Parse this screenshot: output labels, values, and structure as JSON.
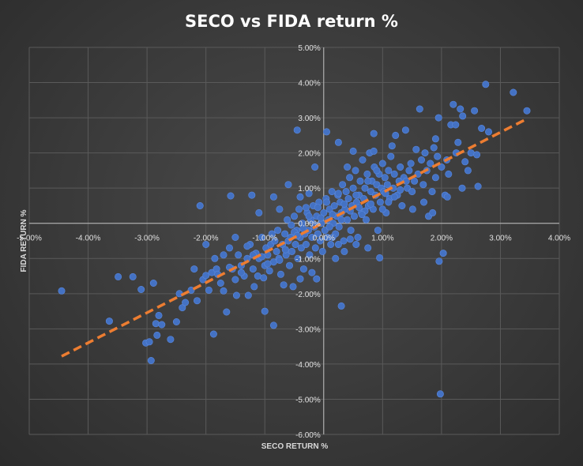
{
  "chart_data": {
    "type": "scatter",
    "title": "SECO vs FIDA return %",
    "xlabel": "SECO RETURN %",
    "ylabel": "FIDA RETURN %",
    "xlim": [
      -0.05,
      0.04
    ],
    "ylim": [
      -0.06,
      0.05
    ],
    "x_ticks": [
      -0.05,
      -0.04,
      -0.03,
      -0.02,
      -0.01,
      0.0,
      0.01,
      0.02,
      0.03,
      0.04
    ],
    "y_ticks": [
      -0.06,
      -0.05,
      -0.04,
      -0.03,
      -0.02,
      -0.01,
      0.0,
      0.01,
      0.02,
      0.03,
      0.04,
      0.05
    ],
    "x_tick_labels": [
      "-5.00%",
      "-4.00%",
      "-3.00%",
      "-2.00%",
      "-1.00%",
      "0.00%",
      "1.00%",
      "2.00%",
      "3.00%",
      "4.00%"
    ],
    "y_tick_labels": [
      "-6.00%",
      "-5.00%",
      "-4.00%",
      "-3.00%",
      "-2.00%",
      "-1.00%",
      "0.00%",
      "1.00%",
      "2.00%",
      "3.00%",
      "4.00%",
      "5.00%"
    ],
    "gridlines": true,
    "legend": "none",
    "colors": {
      "points": "#4472c4",
      "trendline": "#ed7d31",
      "grid": "#5a5a5a",
      "background": "#3b3b3b"
    },
    "trendline": {
      "type": "linear",
      "style": "dashed",
      "from": [
        -0.0445,
        -0.0378
      ],
      "to": [
        0.0345,
        0.0297
      ]
    },
    "series": [
      {
        "points": [
          [
            -0.0445,
            -0.0192
          ],
          [
            -0.0364,
            -0.0278
          ],
          [
            -0.0349,
            -0.0152
          ],
          [
            -0.0324,
            -0.0152
          ],
          [
            -0.031,
            -0.0188
          ],
          [
            -0.0302,
            -0.034
          ],
          [
            -0.0296,
            -0.0337
          ],
          [
            -0.0293,
            -0.039
          ],
          [
            -0.0289,
            -0.017
          ],
          [
            -0.0285,
            -0.0285
          ],
          [
            -0.0283,
            -0.0318
          ],
          [
            -0.028,
            -0.0262
          ],
          [
            -0.0275,
            -0.0288
          ],
          [
            -0.026,
            -0.033
          ],
          [
            -0.025,
            -0.028
          ],
          [
            -0.0245,
            -0.02
          ],
          [
            -0.024,
            -0.024
          ],
          [
            -0.0235,
            -0.0225
          ],
          [
            -0.0225,
            -0.019
          ],
          [
            -0.022,
            -0.013
          ],
          [
            -0.0215,
            -0.022
          ],
          [
            -0.021,
            0.005
          ],
          [
            -0.0205,
            -0.016
          ],
          [
            -0.02,
            -0.0148
          ],
          [
            -0.0195,
            -0.019
          ],
          [
            -0.019,
            -0.014
          ],
          [
            -0.0187,
            -0.0315
          ],
          [
            -0.0182,
            -0.013
          ],
          [
            -0.0175,
            -0.017
          ],
          [
            -0.017,
            -0.0192
          ],
          [
            -0.0165,
            -0.0252
          ],
          [
            -0.016,
            -0.007
          ],
          [
            -0.0155,
            -0.013
          ],
          [
            -0.015,
            -0.016
          ],
          [
            -0.0148,
            -0.0205
          ],
          [
            -0.0145,
            -0.009
          ],
          [
            -0.014,
            -0.012
          ],
          [
            -0.0135,
            -0.015
          ],
          [
            -0.013,
            -0.01
          ],
          [
            -0.0128,
            -0.0205
          ],
          [
            -0.0125,
            -0.006
          ],
          [
            -0.012,
            -0.013
          ],
          [
            -0.0118,
            -0.018
          ],
          [
            -0.0115,
            -0.0085
          ],
          [
            -0.0112,
            -0.015
          ],
          [
            -0.011,
            -0.01
          ],
          [
            -0.0105,
            -0.004
          ],
          [
            -0.0102,
            -0.0155
          ],
          [
            -0.01,
            -0.012
          ],
          [
            -0.0098,
            -0.007
          ],
          [
            -0.0095,
            -0.009
          ],
          [
            -0.0092,
            -0.0135
          ],
          [
            -0.009,
            -0.006
          ],
          [
            -0.0088,
            -0.003
          ],
          [
            -0.0085,
            -0.011
          ],
          [
            -0.0083,
            -0.005
          ],
          [
            -0.008,
            -0.008
          ],
          [
            -0.0078,
            -0.002
          ],
          [
            -0.0076,
            -0.01
          ],
          [
            -0.0073,
            -0.0145
          ],
          [
            -0.007,
            -0.006
          ],
          [
            -0.0068,
            -0.0175
          ],
          [
            -0.0066,
            -0.003
          ],
          [
            -0.0064,
            -0.009
          ],
          [
            -0.0062,
            0.001
          ],
          [
            -0.006,
            -0.005
          ],
          [
            -0.0058,
            -0.012
          ],
          [
            -0.0056,
            -0.004
          ],
          [
            -0.0054,
            -0.008
          ],
          [
            -0.0052,
            -0.018
          ],
          [
            -0.005,
            0.002
          ],
          [
            -0.0048,
            -0.006
          ],
          [
            -0.0046,
            -0.002
          ],
          [
            -0.0044,
            -0.01
          ],
          [
            -0.0042,
            0.004
          ],
          [
            -0.004,
            -0.004
          ],
          [
            -0.0038,
            -0.007
          ],
          [
            -0.0036,
            0.0
          ],
          [
            -0.0034,
            -0.013
          ],
          [
            -0.0032,
            -0.003
          ],
          [
            -0.003,
            -0.006
          ],
          [
            -0.0028,
            0.003
          ],
          [
            -0.0026,
            -0.002
          ],
          [
            -0.0024,
            -0.009
          ],
          [
            -0.0022,
            0.001
          ],
          [
            -0.002,
            -0.004
          ],
          [
            -0.0018,
            0.005
          ],
          [
            -0.0016,
            -0.001
          ],
          [
            -0.0014,
            -0.007
          ],
          [
            -0.0012,
            0.002
          ],
          [
            -0.001,
            -0.003
          ],
          [
            -0.0008,
            0.006
          ],
          [
            -0.0006,
            -0.005
          ],
          [
            -0.0004,
            0.0
          ],
          [
            -0.0002,
            -0.008
          ],
          [
            0.0,
            0.003
          ],
          [
            0.0002,
            -0.002
          ],
          [
            0.0004,
            0.007
          ],
          [
            0.0006,
            -0.004
          ],
          [
            0.0008,
            0.001
          ],
          [
            0.001,
            0.004
          ],
          [
            0.0012,
            -0.006
          ],
          [
            0.0014,
            0.009
          ],
          [
            0.0016,
            0.0
          ],
          [
            0.0018,
            0.005
          ],
          [
            0.002,
            -0.003
          ],
          [
            0.0022,
            0.002
          ],
          [
            0.0024,
            0.008
          ],
          [
            0.0026,
            -0.001
          ],
          [
            0.0028,
            0.006
          ],
          [
            0.003,
            0.003
          ],
          [
            0.0032,
            0.011
          ],
          [
            0.0034,
            -0.005
          ],
          [
            0.0036,
            0.004
          ],
          [
            0.0038,
            0.009
          ],
          [
            0.004,
            0.001
          ],
          [
            0.0042,
            0.007
          ],
          [
            0.0044,
            0.013
          ],
          [
            0.0046,
            -0.002
          ],
          [
            0.0048,
            0.005
          ],
          [
            0.005,
            0.01
          ],
          [
            0.0052,
            0.002
          ],
          [
            0.0054,
            0.015
          ],
          [
            0.0056,
            0.006
          ],
          [
            0.0058,
            -0.004
          ],
          [
            0.006,
            0.008
          ],
          [
            0.0062,
            0.012
          ],
          [
            0.0064,
            0.003
          ],
          [
            0.0066,
            0.018
          ],
          [
            0.0068,
            0.007
          ],
          [
            0.007,
            0.01
          ],
          [
            0.0072,
            0.001
          ],
          [
            0.0074,
            0.014
          ],
          [
            0.0076,
            0.005
          ],
          [
            0.0078,
            0.02
          ],
          [
            0.008,
            0.009
          ],
          [
            0.0082,
            0.012
          ],
          [
            0.0084,
            0.004
          ],
          [
            0.0086,
            0.016
          ],
          [
            0.0088,
            0.008
          ],
          [
            0.009,
            0.011
          ],
          [
            0.0092,
            -0.002
          ],
          [
            0.0094,
            0.014
          ],
          [
            0.0096,
            0.006
          ],
          [
            0.0098,
            0.01
          ],
          [
            0.01,
            0.017
          ],
          [
            0.0102,
            0.009
          ],
          [
            0.0104,
            0.013
          ],
          [
            0.0106,
            0.003
          ],
          [
            0.0108,
            0.011
          ],
          [
            0.011,
            0.015
          ],
          [
            0.0112,
            0.007
          ],
          [
            0.0114,
            0.019
          ],
          [
            0.0116,
            0.022
          ],
          [
            0.0118,
            0.01
          ],
          [
            0.012,
            0.014
          ],
          [
            0.0122,
            0.025
          ],
          [
            0.0125,
            0.008
          ],
          [
            0.0128,
            0.012
          ],
          [
            0.013,
            0.016
          ],
          [
            0.0133,
            0.005
          ],
          [
            0.0136,
            0.013
          ],
          [
            0.0139,
            0.0265
          ],
          [
            0.0142,
            0.01
          ],
          [
            0.0145,
            0.015
          ],
          [
            0.0148,
            0.017
          ],
          [
            0.0151,
            0.004
          ],
          [
            0.0154,
            0.012
          ],
          [
            0.0157,
            0.021
          ],
          [
            0.016,
            0.014
          ],
          [
            0.0163,
            0.0325
          ],
          [
            0.0166,
            0.018
          ],
          [
            0.0169,
            0.011
          ],
          [
            0.0172,
            0.02
          ],
          [
            0.0175,
            0.015
          ],
          [
            0.0178,
            0.002
          ],
          [
            0.0181,
            0.017
          ],
          [
            0.0184,
            0.009
          ],
          [
            0.0187,
            0.0215
          ],
          [
            0.019,
            0.013
          ],
          [
            0.0193,
            0.019
          ],
          [
            0.0196,
            -0.0108
          ],
          [
            0.0198,
            -0.0485
          ],
          [
            0.02,
            0.016
          ],
          [
            0.0203,
            -0.0085
          ],
          [
            0.0206,
            0.008
          ],
          [
            0.0209,
            0.018
          ],
          [
            0.0212,
            0.014
          ],
          [
            0.0216,
            0.028
          ],
          [
            0.022,
            0.0338
          ],
          [
            0.0224,
            0.028
          ],
          [
            0.0228,
            0.023
          ],
          [
            0.0232,
            0.0325
          ],
          [
            0.0236,
            0.0305
          ],
          [
            0.024,
            0.0175
          ],
          [
            0.0245,
            0.015
          ],
          [
            0.025,
            0.02
          ],
          [
            0.0256,
            0.032
          ],
          [
            0.0262,
            0.0105
          ],
          [
            0.0268,
            0.027
          ],
          [
            0.0275,
            0.0395
          ],
          [
            0.028,
            0.026
          ],
          [
            0.0322,
            0.0372
          ],
          [
            0.0345,
            0.032
          ],
          [
            -0.0158,
            0.0078
          ],
          [
            -0.0122,
            0.008
          ],
          [
            -0.011,
            0.003
          ],
          [
            -0.0085,
            0.0075
          ],
          [
            -0.0075,
            0.004
          ],
          [
            -0.006,
            0.011
          ],
          [
            -0.0045,
            0.0265
          ],
          [
            -0.004,
            0.0075
          ],
          [
            -0.003,
            0.0045
          ],
          [
            -0.0025,
            0.0085
          ],
          [
            -0.0015,
            0.016
          ],
          [
            0.0005,
            0.026
          ],
          [
            0.0025,
            0.023
          ],
          [
            0.004,
            0.016
          ],
          [
            0.005,
            0.0205
          ],
          [
            0.0085,
            0.0255
          ],
          [
            0.0085,
            0.0205
          ],
          [
            -0.0085,
            -0.029
          ],
          [
            0.003,
            -0.0235
          ],
          [
            -0.0012,
            -0.0158
          ],
          [
            -0.004,
            -0.0158
          ],
          [
            -0.002,
            -0.014
          ],
          [
            0.002,
            -0.01
          ],
          [
            0.0035,
            -0.008
          ],
          [
            0.0055,
            -0.006
          ],
          [
            0.0075,
            -0.007
          ],
          [
            0.0095,
            -0.0098
          ],
          [
            -0.01,
            -0.025
          ],
          [
            -0.013,
            -0.0065
          ],
          [
            -0.015,
            -0.004
          ],
          [
            -0.017,
            -0.009
          ],
          [
            -0.0185,
            -0.01
          ],
          [
            -0.02,
            -0.006
          ],
          [
            0.015,
            0.009
          ],
          [
            0.017,
            0.006
          ],
          [
            0.0185,
            0.003
          ],
          [
            0.019,
            0.024
          ],
          [
            0.021,
            0.0075
          ],
          [
            0.0225,
            0.02
          ],
          [
            0.0235,
            0.01
          ],
          [
            0.026,
            0.0195
          ],
          [
            0.0195,
            0.03
          ],
          [
            0.001,
            -0.001
          ],
          [
            -0.0005,
            0.0015
          ],
          [
            0.0015,
            0.0025
          ],
          [
            -0.0015,
            -0.0005
          ],
          [
            0.003,
            0.001
          ],
          [
            -0.0025,
            0.002
          ],
          [
            0.0045,
            0.0035
          ],
          [
            -0.0035,
            -0.0015
          ],
          [
            0.006,
            0.0045
          ],
          [
            -0.005,
            -0.0025
          ],
          [
            0.007,
            0.0035
          ],
          [
            0.008,
            0.0055
          ],
          [
            0.0065,
            0.0025
          ],
          [
            0.0055,
            0.008
          ],
          [
            0.011,
            0.006
          ],
          [
            0.01,
            0.004
          ],
          [
            0.012,
            0.0075
          ],
          [
            0.013,
            0.0095
          ],
          [
            0.014,
            0.012
          ],
          [
            -0.0065,
            -0.0075
          ],
          [
            -0.0075,
            -0.0105
          ],
          [
            -0.0095,
            -0.0115
          ],
          [
            -0.0105,
            -0.0095
          ],
          [
            -0.012,
            -0.009
          ],
          [
            -0.014,
            -0.014
          ],
          [
            -0.016,
            -0.0125
          ],
          [
            -0.018,
            -0.0145
          ],
          [
            -0.0045,
            -0.0035
          ],
          [
            -0.0055,
            -0.0005
          ],
          [
            0.0015,
            -0.004
          ],
          [
            0.0025,
            -0.006
          ],
          [
            0.0045,
            -0.0045
          ],
          [
            0.0035,
            0.0055
          ],
          [
            0.0025,
            0.0085
          ],
          [
            0.0005,
            0.006
          ],
          [
            -0.001,
            0.0045
          ],
          [
            0.009,
            0.015
          ],
          [
            0.0075,
            0.012
          ],
          [
            0.0105,
            0.0085
          ]
        ]
      }
    ]
  }
}
